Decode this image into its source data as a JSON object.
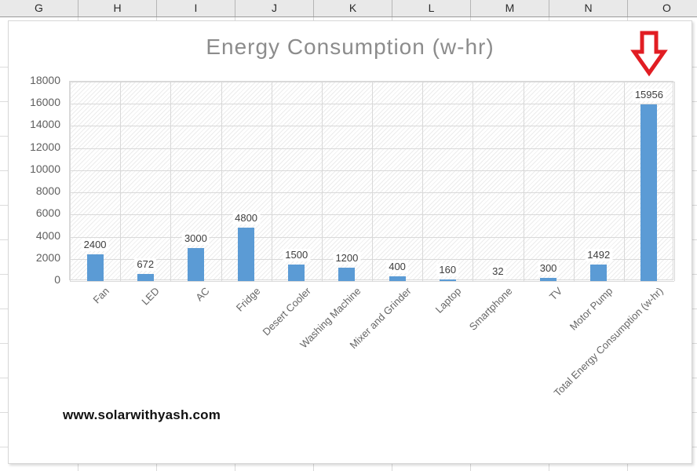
{
  "spreadsheet": {
    "columns": [
      "G",
      "H",
      "I",
      "J",
      "K",
      "L",
      "M",
      "N",
      "O"
    ]
  },
  "watermark": "www.solarwithyash.com",
  "chart_data": {
    "type": "bar",
    "title": "Energy Consumption (w-hr)",
    "categories": [
      "Fan",
      "LED",
      "AC",
      "Fridge",
      "Desert Cooler",
      "Washing Machine",
      "Mixer and Grinder",
      "Laptop",
      "Smartphone",
      "TV",
      "Motor Pump",
      "Total Energy Consumption (w-hr)"
    ],
    "values": [
      2400,
      672,
      3000,
      4800,
      1500,
      1200,
      400,
      160,
      32,
      300,
      1492,
      15956
    ],
    "data_labels": [
      "2400",
      "672",
      "3000",
      "4800",
      "1500",
      "1200",
      "400",
      "160",
      "32",
      "300",
      "1492",
      "15956"
    ],
    "xlabel": "",
    "ylabel": "",
    "ylim": [
      0,
      18000
    ],
    "yticks": [
      0,
      2000,
      4000,
      6000,
      8000,
      10000,
      12000,
      14000,
      16000,
      18000
    ],
    "grid": true,
    "legend": false,
    "bar_color": "#5b9bd5",
    "plot_background": "diagonal-hatch",
    "annotation": {
      "shape": "block-arrow-down",
      "color": "#e11d23",
      "points_at": "Total Energy Consumption (w-hr)"
    }
  }
}
